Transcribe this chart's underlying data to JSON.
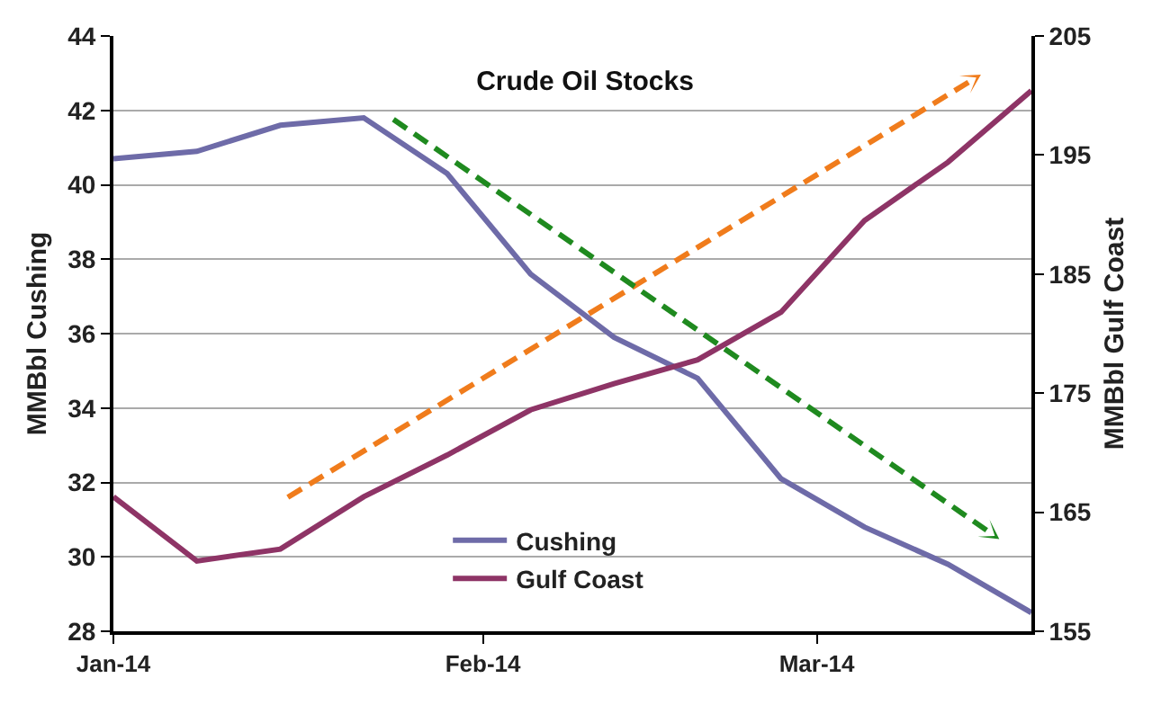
{
  "chart_data": {
    "type": "line",
    "title": "Crude Oil Stocks",
    "ylabel": "MMBbl Cushing",
    "y2label": "MMBbl Gulf Coast",
    "x": [
      "2014-01-01",
      "2014-01-08",
      "2014-01-15",
      "2014-01-22",
      "2014-01-29",
      "2014-02-05",
      "2014-02-12",
      "2014-02-19",
      "2014-02-26",
      "2014-03-05",
      "2014-03-12",
      "2014-03-19"
    ],
    "series": [
      {
        "name": "Cushing",
        "color": "#6e6ba8",
        "values": [
          40.7,
          40.9,
          41.6,
          41.8,
          40.3,
          37.6,
          35.9,
          34.8,
          32.1,
          30.8,
          29.8,
          28.5
        ]
      },
      {
        "name": "Gulf Coast",
        "color": "#8e3466",
        "axis": "y2",
        "values": [
          166.3,
          160.9,
          161.9,
          166.3,
          169.8,
          173.6,
          175.8,
          177.8,
          181.8,
          189.5,
          194.4,
          200.4
        ]
      }
    ],
    "xlim": [
      "2014-01-01",
      "2014-03-19"
    ],
    "xticks": [
      {
        "value": "2014-01-01",
        "label": "Jan-14"
      },
      {
        "value": "2014-02-01",
        "label": "Feb-14"
      },
      {
        "value": "2014-03-01",
        "label": "Mar-14"
      }
    ],
    "ylim": [
      28,
      44
    ],
    "yticks": [
      28,
      30,
      32,
      34,
      36,
      38,
      40,
      42,
      44
    ],
    "y2lim": [
      155,
      205
    ],
    "y2ticks": [
      155,
      165,
      175,
      185,
      195,
      205
    ],
    "grid": "y",
    "legend": "bottom",
    "marker": "none",
    "line_style": "solid"
  }
}
